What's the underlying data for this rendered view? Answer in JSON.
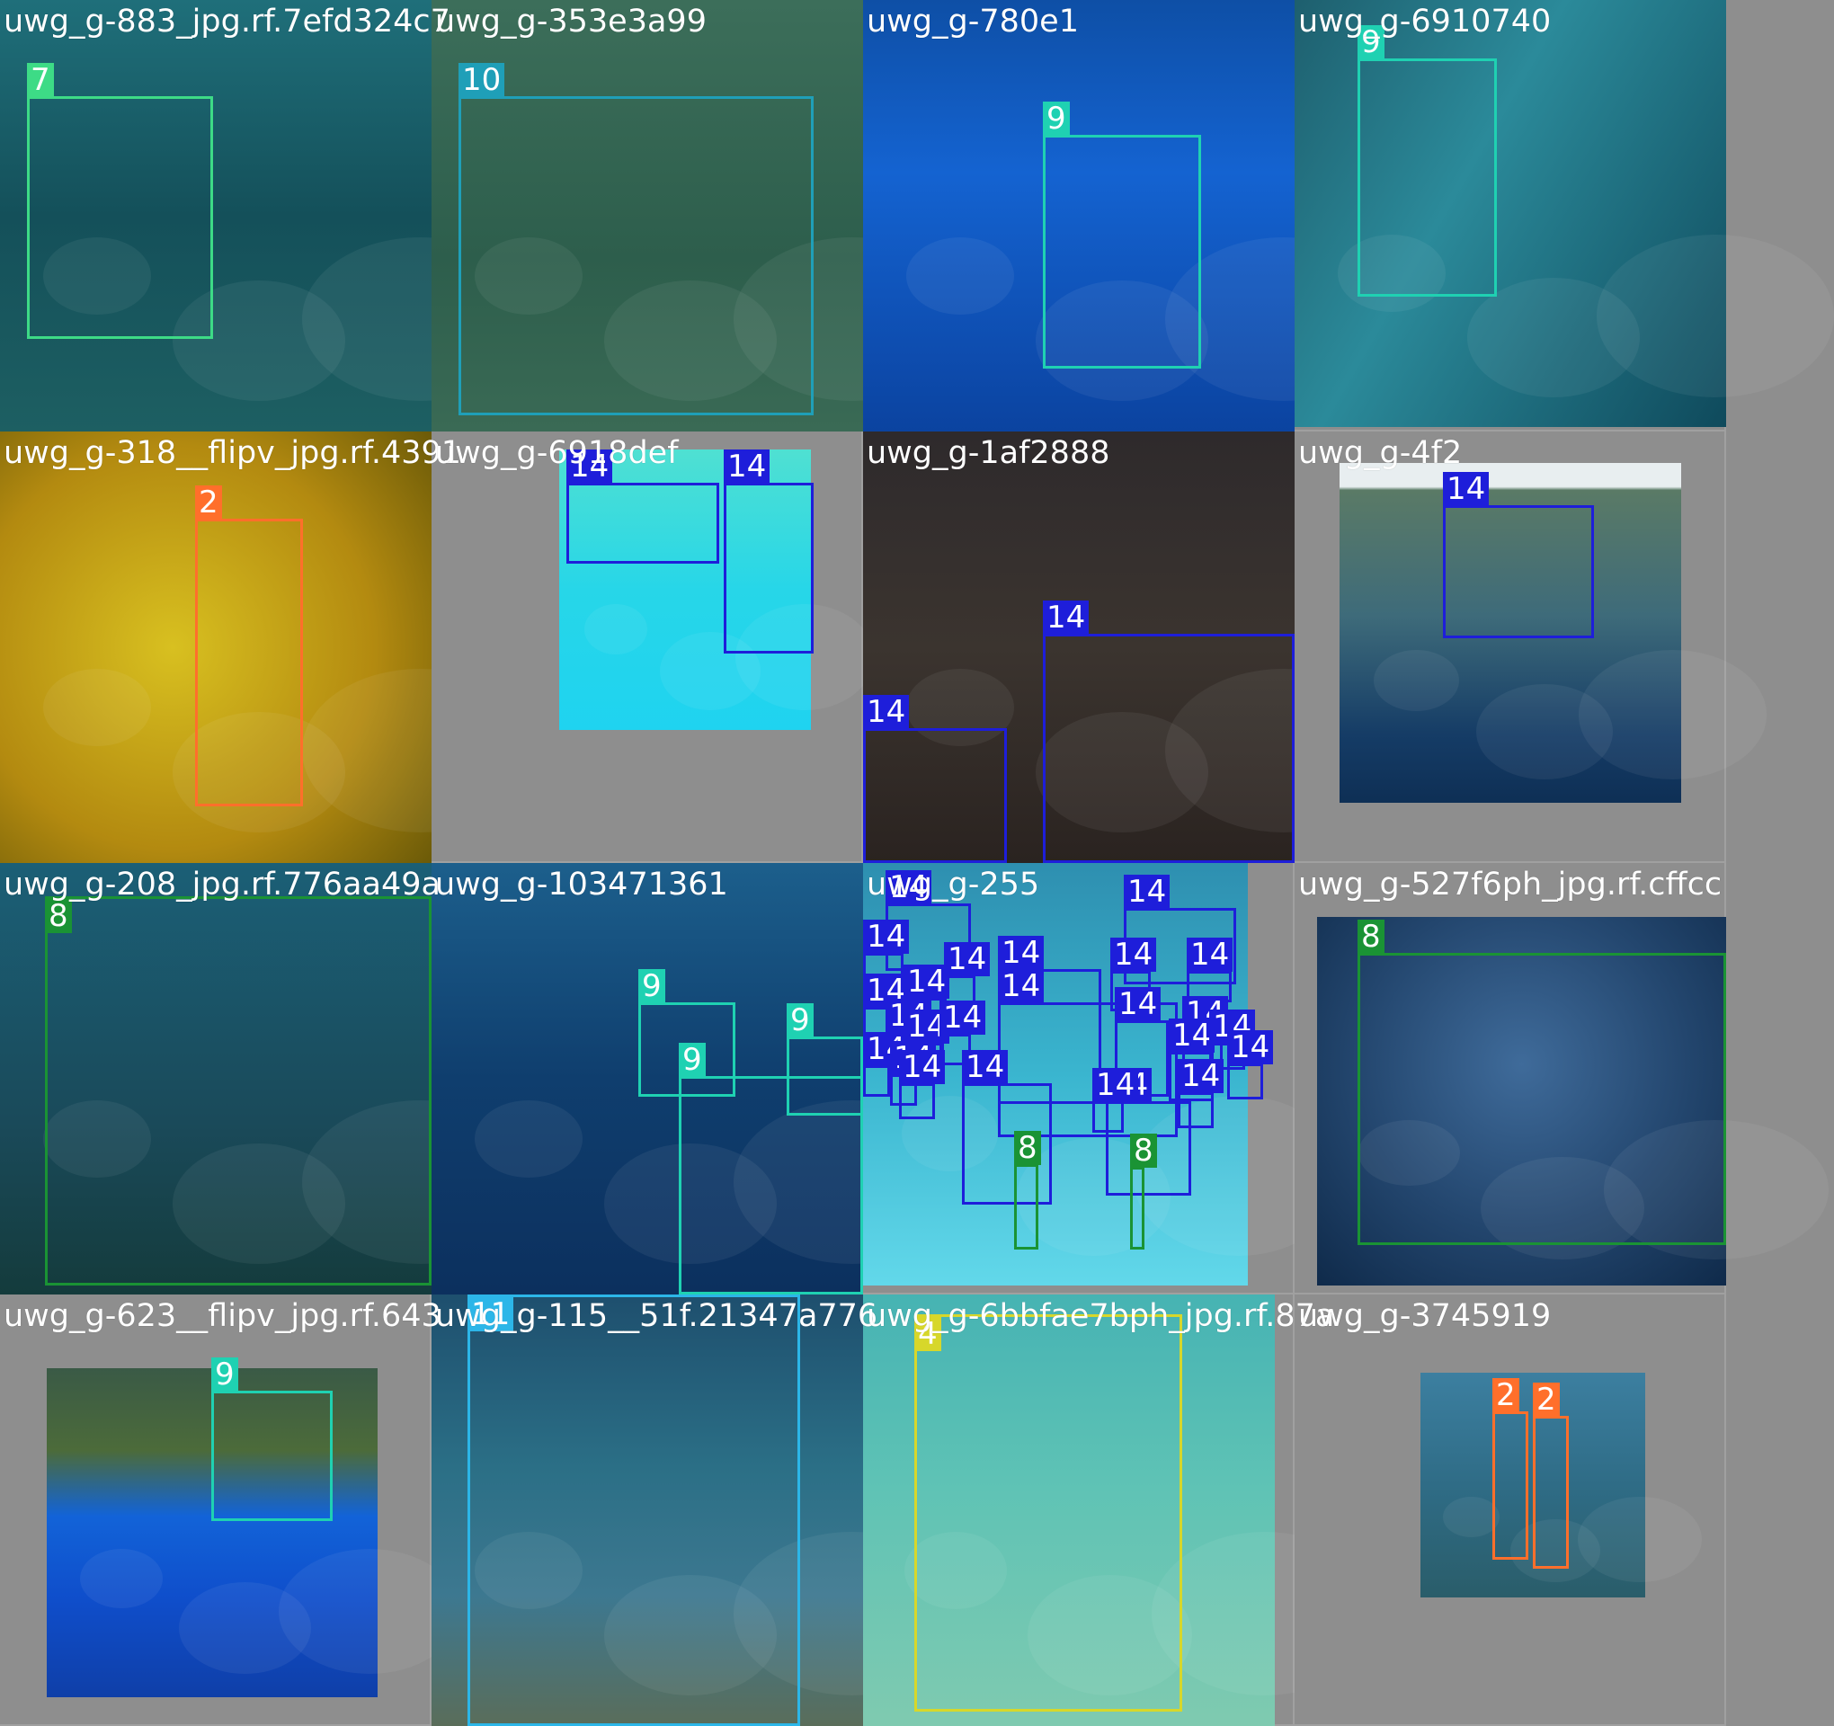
{
  "colors": {
    "2": "#ff6f2b",
    "4": "#d7d72a",
    "7": "#3ddb86",
    "8": "#1a9334",
    "9": "#1fd1b2",
    "10": "#1f9fb8",
    "11": "#2cb6e8",
    "14": "#1e1eda"
  },
  "tiles": [
    {
      "filename": "uwg_g-883_jpg.rf.7efd324c7",
      "photo_bg": "linear-gradient(180deg,#1f6f7a 0%,#14505a 50%,#1d5f62 100%)",
      "photo": [
        0,
        0,
        480,
        480
      ],
      "boxes": [
        {
          "label": "7",
          "cls": "7",
          "r": [
            30,
            107,
            207,
            270
          ]
        }
      ]
    },
    {
      "filename": "uwg_g-353e3a99",
      "photo_bg": "linear-gradient(180deg,#3c6e5a,#2d5e4c 60%,#3a6a55)",
      "photo": [
        0,
        0,
        480,
        480
      ],
      "boxes": [
        {
          "label": "10",
          "cls": "10",
          "r": [
            30,
            107,
            395,
            355
          ]
        }
      ]
    },
    {
      "filename": "uwg_g-780e1",
      "photo_bg": "linear-gradient(180deg,#0e4fa6,#1463d1 40%,#0b43a0)",
      "photo": [
        0,
        0,
        480,
        480
      ],
      "boxes": [
        {
          "label": "9",
          "cls": "9",
          "r": [
            200,
            150,
            176,
            260
          ]
        }
      ]
    },
    {
      "filename": "uwg_g-6910740",
      "photo_bg": "linear-gradient(120deg,#1e5f6e,#2b8a9a 40%,#0f4a5c)",
      "photo": [
        0,
        0,
        480,
        475
      ],
      "boxes": [
        {
          "label": "9",
          "cls": "9",
          "r": [
            70,
            65,
            155,
            265
          ]
        }
      ]
    },
    {
      "filename": "uwg_g-318__flipv_jpg.rf.4391",
      "photo_bg": "radial-gradient(circle at 40% 50%,#d8c020,#b38a10 60%,#6b5a08)",
      "photo": [
        0,
        0,
        480,
        480
      ],
      "boxes": [
        {
          "label": "2",
          "cls": "2",
          "r": [
            217,
            97,
            120,
            320
          ]
        }
      ]
    },
    {
      "filename": "uwg_g-6918def",
      "photo_bg": "linear-gradient(180deg,#4fe0d2,#27d6e8 50%,#1fd3f0)",
      "photo": [
        142,
        20,
        280,
        312
      ],
      "boxes": [
        {
          "label": "14",
          "cls": "14",
          "r": [
            150,
            57,
            170,
            90
          ]
        },
        {
          "label": "14",
          "cls": "14",
          "r": [
            325,
            57,
            100,
            190
          ]
        }
      ]
    },
    {
      "filename": "uwg_g-1af2888",
      "photo_bg": "linear-gradient(180deg,#2e2a2c,#3b342f 50%,#2a2320)",
      "photo": [
        0,
        0,
        480,
        480
      ],
      "boxes": [
        {
          "label": "14",
          "cls": "14",
          "r": [
            200,
            225,
            280,
            255
          ]
        },
        {
          "label": "14",
          "cls": "14",
          "r": [
            0,
            330,
            160,
            150
          ]
        }
      ]
    },
    {
      "filename": "uwg_g-4f2",
      "photo_bg": "linear-gradient(180deg,#e8eef0 0%,#e8eef0 7%,#5a7a66 8%,#3e6b7a 45%,#153c66 80%,#0e2f55)",
      "photo": [
        50,
        35,
        380,
        378
      ],
      "boxes": [
        {
          "label": "14",
          "cls": "14",
          "r": [
            165,
            82,
            168,
            148
          ]
        }
      ]
    },
    {
      "filename": "uwg_g-208_jpg.rf.776aa49a",
      "photo_bg": "linear-gradient(180deg,#1b5f76,#1a4a5a 60%,#143b3c)",
      "photo": [
        0,
        0,
        480,
        480
      ],
      "boxes": [
        {
          "label": "8",
          "cls": "8",
          "r": [
            50,
            37,
            430,
            433
          ]
        }
      ]
    },
    {
      "filename": "uwg_g-103471361",
      "photo_bg": "linear-gradient(180deg,#1c5f8c,#0f3e6e 50%,#0c305e)",
      "photo": [
        0,
        0,
        480,
        480
      ],
      "boxes": [
        {
          "label": "9",
          "cls": "9",
          "r": [
            230,
            155,
            108,
            105
          ]
        },
        {
          "label": "9",
          "cls": "9",
          "r": [
            395,
            193,
            85,
            88
          ]
        },
        {
          "label": "9",
          "cls": "9",
          "r": [
            275,
            237,
            205,
            243
          ]
        }
      ]
    },
    {
      "filename": "uwg_g-255",
      "photo_bg": "linear-gradient(180deg,#2e8fb0,#3ab5cf 50%,#62d8ea)",
      "photo": [
        0,
        0,
        428,
        470
      ],
      "boxes": [
        {
          "label": "14",
          "cls": "14",
          "r": [
            25,
            45,
            95,
            75
          ]
        },
        {
          "label": "14",
          "cls": "14",
          "r": [
            290,
            50,
            125,
            85
          ]
        },
        {
          "label": "14",
          "cls": "14",
          "r": [
            0,
            100,
            45,
            40
          ]
        },
        {
          "label": "14",
          "cls": "14",
          "r": [
            90,
            125,
            35,
            35
          ]
        },
        {
          "label": "14",
          "cls": "14",
          "r": [
            150,
            118,
            115,
            150
          ]
        },
        {
          "label": "14",
          "cls": "14",
          "r": [
            275,
            120,
            45,
            45
          ]
        },
        {
          "label": "14",
          "cls": "14",
          "r": [
            360,
            120,
            50,
            35
          ]
        },
        {
          "label": "14",
          "cls": "14",
          "r": [
            0,
            160,
            40,
            40
          ]
        },
        {
          "label": "14",
          "cls": "14",
          "r": [
            45,
            150,
            45,
            40
          ]
        },
        {
          "label": "14",
          "cls": "14",
          "r": [
            150,
            155,
            200,
            150
          ]
        },
        {
          "label": "14",
          "cls": "14",
          "r": [
            280,
            175,
            60,
            85
          ]
        },
        {
          "label": "14",
          "cls": "14",
          "r": [
            355,
            185,
            45,
            45
          ]
        },
        {
          "label": "14",
          "cls": "14",
          "r": [
            25,
            188,
            30,
            30
          ]
        },
        {
          "label": "14",
          "cls": "14",
          "r": [
            45,
            200,
            45,
            40
          ]
        },
        {
          "label": "14",
          "cls": "14",
          "r": [
            85,
            190,
            35,
            35
          ]
        },
        {
          "label": "14",
          "cls": "14",
          "r": [
            0,
            225,
            30,
            35
          ]
        },
        {
          "label": "14",
          "cls": "14",
          "r": [
            30,
            235,
            30,
            35
          ]
        },
        {
          "label": "14",
          "cls": "14",
          "r": [
            340,
            210,
            50,
            55
          ]
        },
        {
          "label": "14",
          "cls": "14",
          "r": [
            385,
            200,
            40,
            30
          ]
        },
        {
          "label": "14",
          "cls": "14",
          "r": [
            405,
            223,
            40,
            40
          ]
        },
        {
          "label": "14",
          "cls": "14",
          "r": [
            40,
            245,
            40,
            40
          ]
        },
        {
          "label": "14",
          "cls": "14",
          "r": [
            110,
            245,
            100,
            135
          ]
        },
        {
          "label": "14",
          "cls": "14",
          "r": [
            270,
            265,
            95,
            105
          ]
        },
        {
          "label": "14",
          "cls": "14",
          "r": [
            350,
            255,
            40,
            40
          ]
        },
        {
          "label": "14",
          "cls": "14",
          "r": [
            255,
            265,
            35,
            35
          ]
        },
        {
          "label": "8",
          "cls": "8",
          "r": [
            168,
            335,
            27,
            95
          ]
        },
        {
          "label": "8",
          "cls": "8",
          "r": [
            297,
            338,
            16,
            92
          ]
        }
      ]
    },
    {
      "filename": "uwg_g-527f6ph_jpg.rf.cffcc",
      "photo_bg": "radial-gradient(circle at 50% 40%,#3f6b9a,#23466e 55%,#0f2a4a)",
      "photo": [
        25,
        60,
        455,
        410
      ],
      "boxes": [
        {
          "label": "8",
          "cls": "8",
          "r": [
            70,
            100,
            410,
            325
          ]
        }
      ]
    },
    {
      "filename": "uwg_g-623__flipv_jpg.rf.643",
      "photo_bg": "linear-gradient(180deg,#3a5a46 0%,#4c6b3a 25%,#1263d8 45%,#0f4ecb 70%,#0f3fa8)",
      "photo": [
        52,
        82,
        368,
        366
      ],
      "boxes": [
        {
          "label": "9",
          "cls": "9",
          "r": [
            235,
            107,
            135,
            145
          ]
        }
      ]
    },
    {
      "filename": "uwg_g-115__51f.21347a776",
      "photo_bg": "linear-gradient(180deg,#1e4f6e,#2b6f86 40%,#3d7890 70%,#5a6d5a)",
      "photo": [
        0,
        0,
        480,
        480
      ],
      "boxes": [
        {
          "label": "11",
          "cls": "11",
          "r": [
            40,
            0,
            370,
            480
          ]
        }
      ]
    },
    {
      "filename": "uwg_g-6bbfae7bph_jpg.rf.87a",
      "photo_bg": "linear-gradient(180deg,#46b3b3,#5fc3b5 45%,#7fcab0)",
      "photo": [
        0,
        0,
        458,
        480
      ],
      "boxes": [
        {
          "label": "4",
          "cls": "4",
          "r": [
            57,
            22,
            298,
            442
          ]
        }
      ]
    },
    {
      "filename": "uwg_g-3745919",
      "photo_bg": "linear-gradient(180deg,#3c7fa0,#2f6c86 50%,#2a5d6a)",
      "photo": [
        140,
        87,
        250,
        250
      ],
      "boxes": [
        {
          "label": "2",
          "cls": "2",
          "r": [
            220,
            130,
            40,
            165
          ]
        },
        {
          "label": "2",
          "cls": "2",
          "r": [
            265,
            135,
            40,
            170
          ]
        }
      ]
    }
  ]
}
